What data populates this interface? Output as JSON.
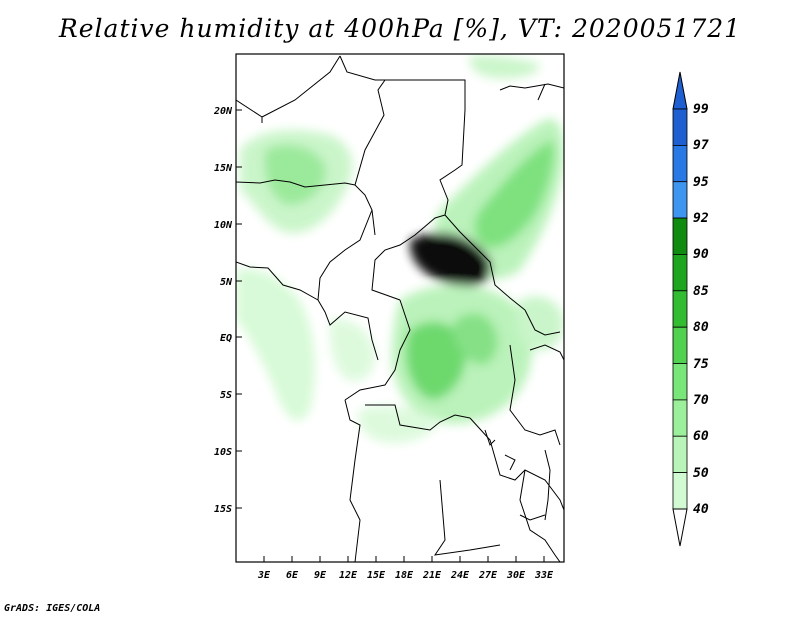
{
  "title": "Relative humidity at 400hPa [%], VT: 2020051721",
  "footer": "GrADS: IGES/COLA",
  "map": {
    "lat_ticks": [
      "20N",
      "15N",
      "10N",
      "5N",
      "EQ",
      "5S",
      "10S",
      "15S"
    ],
    "lon_ticks": [
      "3E",
      "6E",
      "9E",
      "12E",
      "15E",
      "18E",
      "21E",
      "24E",
      "27E",
      "30E",
      "33E"
    ]
  },
  "colorbar": {
    "labels": [
      "99",
      "97",
      "95",
      "92",
      "90",
      "85",
      "80",
      "75",
      "70",
      "60",
      "50",
      "40"
    ],
    "colors": [
      "#1e5fd2",
      "#2878e6",
      "#3c96f0",
      "#0f8c0f",
      "#1ea51e",
      "#32bc32",
      "#50d250",
      "#78e678",
      "#9cf09c",
      "#b9f5b9",
      "#d2fad2",
      "#ebffeb"
    ]
  }
}
